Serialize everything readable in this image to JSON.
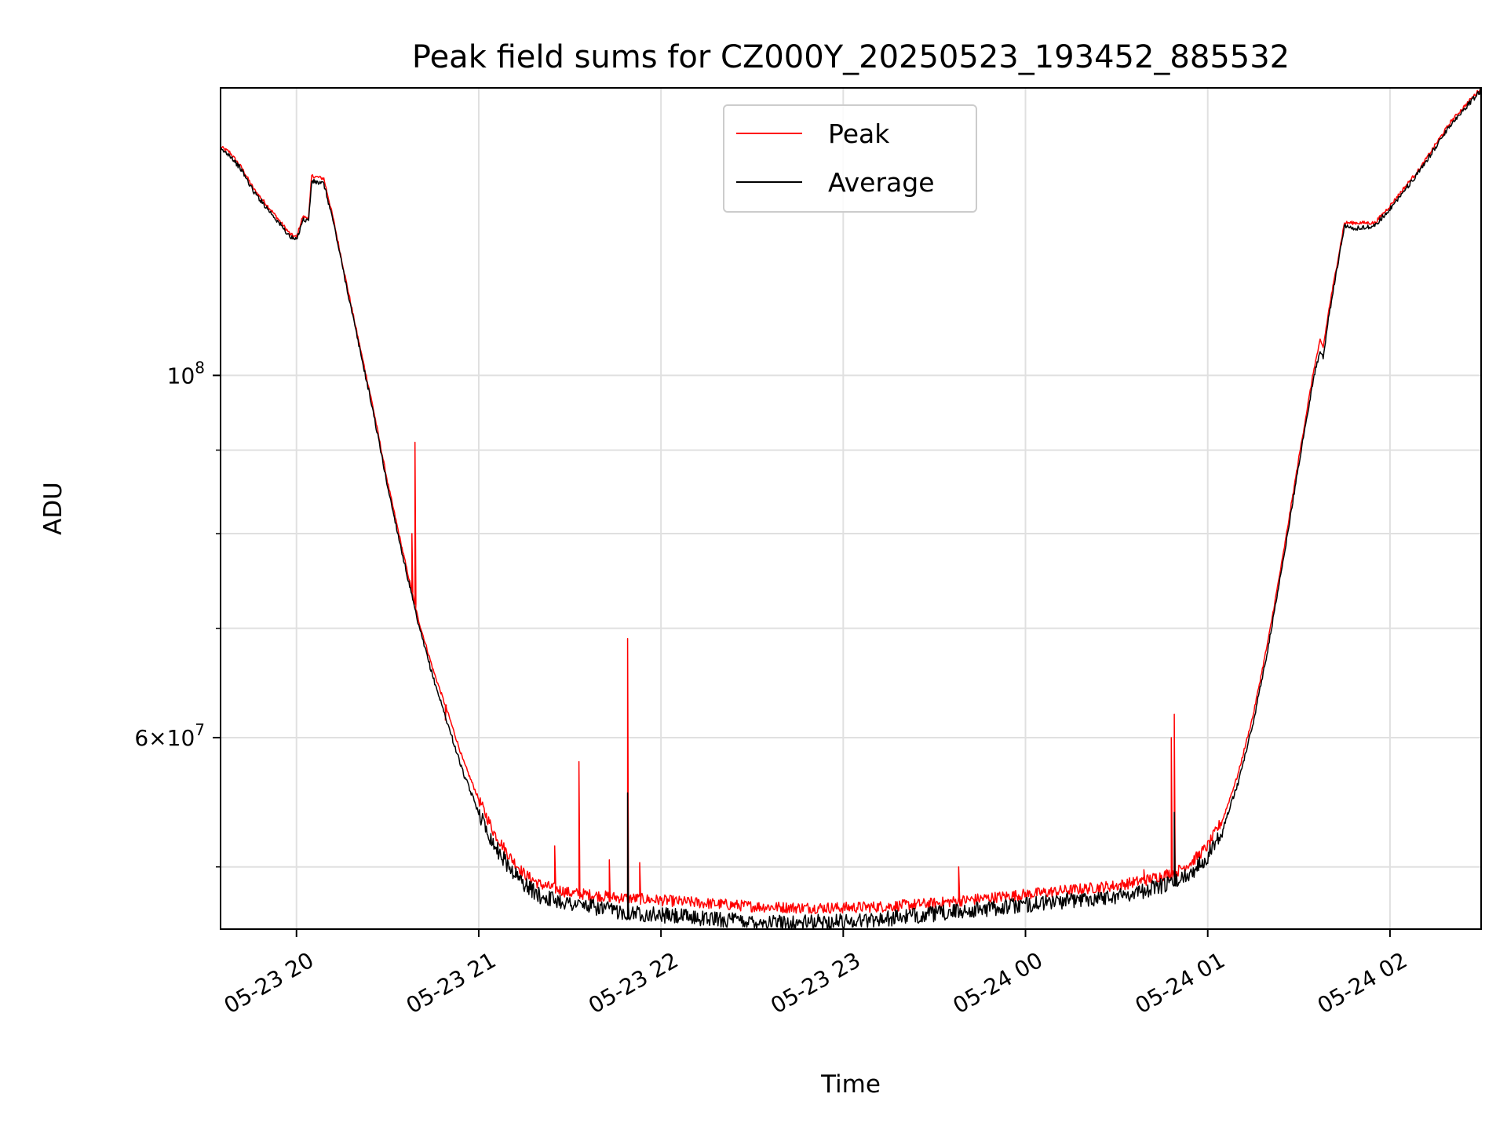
{
  "chart_data": {
    "type": "line",
    "title": "Peak field sums for CZ000Y_20250523_193452_885532",
    "xlabel": "Time",
    "ylabel": "ADU",
    "y_scale": "log",
    "ylim": [
      45800000,
      150000000
    ],
    "xlim": [
      "2025-05-23 19:35",
      "2025-05-24 02:30"
    ],
    "x_ticks": [
      "2025-05-23 20:00",
      "2025-05-23 21:00",
      "2025-05-23 22:00",
      "2025-05-23 23:00",
      "2025-05-24 00:00",
      "2025-05-24 01:00",
      "2025-05-24 02:00"
    ],
    "x_tick_labels": [
      "05-23 20",
      "05-23 21",
      "05-23 22",
      "05-23 23",
      "05-24 00",
      "05-24 01",
      "05-24 02"
    ],
    "y_major_ticks": [
      100000000,
      60000000
    ],
    "y_major_tick_labels": [
      {
        "base": "10",
        "exp": "8",
        "coef": ""
      },
      {
        "base": "10",
        "exp": "7",
        "coef": "6"
      }
    ],
    "y_minor_ticks": [
      50000000,
      70000000,
      80000000,
      90000000
    ],
    "grid": true,
    "legend_position": "top-center",
    "series": [
      {
        "name": "Peak",
        "color": "#ff0000",
        "points": [
          [
            "2025-05-23 19:35",
            138000000
          ],
          [
            "2025-05-23 19:38",
            137000000
          ],
          [
            "2025-05-23 19:42",
            134000000
          ],
          [
            "2025-05-23 19:46",
            130000000
          ],
          [
            "2025-05-23 19:52",
            126000000
          ],
          [
            "2025-05-23 19:58",
            122000000
          ],
          [
            "2025-05-23 20:00",
            121500000
          ],
          [
            "2025-05-23 20:02",
            125000000
          ],
          [
            "2025-05-23 20:04",
            125000000
          ],
          [
            "2025-05-23 20:05",
            132500000
          ],
          [
            "2025-05-23 20:09",
            132000000
          ],
          [
            "2025-05-23 20:12",
            125000000
          ],
          [
            "2025-05-23 20:16",
            115000000
          ],
          [
            "2025-05-23 20:20",
            106000000
          ],
          [
            "2025-05-23 20:25",
            96000000
          ],
          [
            "2025-05-23 20:30",
            86000000
          ],
          [
            "2025-05-23 20:35",
            78000000
          ],
          [
            "2025-05-23 20:40",
            71000000
          ],
          [
            "2025-05-23 20:45",
            66000000
          ],
          [
            "2025-05-23 20:50",
            62000000
          ],
          [
            "2025-05-23 20:55",
            58000000
          ],
          [
            "2025-05-23 21:00",
            55000000
          ],
          [
            "2025-05-23 21:05",
            52500000
          ],
          [
            "2025-05-23 21:10",
            50800000
          ],
          [
            "2025-05-23 21:15",
            49500000
          ],
          [
            "2025-05-23 21:20",
            48800000
          ],
          [
            "2025-05-23 21:30",
            48200000
          ],
          [
            "2025-05-23 21:45",
            47900000
          ],
          [
            "2025-05-23 22:00",
            47700000
          ],
          [
            "2025-05-23 22:15",
            47500000
          ],
          [
            "2025-05-23 22:30",
            47300000
          ],
          [
            "2025-05-23 22:45",
            47200000
          ],
          [
            "2025-05-23 23:00",
            47200000
          ],
          [
            "2025-05-23 23:15",
            47300000
          ],
          [
            "2025-05-23 23:30",
            47500000
          ],
          [
            "2025-05-23 23:45",
            47800000
          ],
          [
            "2025-05-24 00:00",
            48100000
          ],
          [
            "2025-05-24 00:15",
            48400000
          ],
          [
            "2025-05-24 00:30",
            48700000
          ],
          [
            "2025-05-24 00:40",
            49100000
          ],
          [
            "2025-05-24 00:50",
            49700000
          ],
          [
            "2025-05-24 00:55",
            50400000
          ],
          [
            "2025-05-24 01:00",
            51500000
          ],
          [
            "2025-05-24 01:05",
            53500000
          ],
          [
            "2025-05-24 01:10",
            57000000
          ],
          [
            "2025-05-24 01:15",
            62000000
          ],
          [
            "2025-05-24 01:20",
            69000000
          ],
          [
            "2025-05-24 01:25",
            78000000
          ],
          [
            "2025-05-24 01:30",
            89000000
          ],
          [
            "2025-05-24 01:35",
            101000000
          ],
          [
            "2025-05-24 01:37",
            105000000
          ],
          [
            "2025-05-24 01:38",
            104000000
          ],
          [
            "2025-05-24 01:40",
            110000000
          ],
          [
            "2025-05-24 01:45",
            124000000
          ],
          [
            "2025-05-24 01:50",
            124000000
          ],
          [
            "2025-05-24 01:55",
            124000000
          ],
          [
            "2025-05-24 02:00",
            127000000
          ],
          [
            "2025-05-24 02:05",
            130500000
          ],
          [
            "2025-05-24 02:10",
            134000000
          ],
          [
            "2025-05-24 02:15",
            138500000
          ],
          [
            "2025-05-24 02:20",
            143000000
          ],
          [
            "2025-05-24 02:25",
            146500000
          ],
          [
            "2025-05-24 02:30",
            150000000
          ]
        ],
        "spikes": [
          [
            "2025-05-23 20:38",
            80000000
          ],
          [
            "2025-05-23 20:39",
            91000000
          ],
          [
            "2025-05-23 20:49",
            61500000
          ],
          [
            "2025-05-23 21:25",
            51500000
          ],
          [
            "2025-05-23 21:33",
            58000000
          ],
          [
            "2025-05-23 21:43",
            50500000
          ],
          [
            "2025-05-23 21:49",
            69000000
          ],
          [
            "2025-05-23 21:53",
            50300000
          ],
          [
            "2025-05-23 23:38",
            50000000
          ],
          [
            "2025-05-24 00:39",
            49800000
          ],
          [
            "2025-05-24 00:48",
            60000000
          ],
          [
            "2025-05-24 00:49",
            62000000
          ]
        ]
      },
      {
        "name": "Average",
        "color": "#000000",
        "points": [
          [
            "2025-05-23 19:35",
            137500000
          ],
          [
            "2025-05-23 19:38",
            136500000
          ],
          [
            "2025-05-23 19:42",
            133500000
          ],
          [
            "2025-05-23 19:46",
            129500000
          ],
          [
            "2025-05-23 19:52",
            125500000
          ],
          [
            "2025-05-23 19:58",
            121500000
          ],
          [
            "2025-05-23 20:00",
            121000000
          ],
          [
            "2025-05-23 20:02",
            124500000
          ],
          [
            "2025-05-23 20:04",
            124500000
          ],
          [
            "2025-05-23 20:05",
            131500000
          ],
          [
            "2025-05-23 20:09",
            131000000
          ],
          [
            "2025-05-23 20:12",
            124500000
          ],
          [
            "2025-05-23 20:16",
            114500000
          ],
          [
            "2025-05-23 20:20",
            105500000
          ],
          [
            "2025-05-23 20:25",
            95500000
          ],
          [
            "2025-05-23 20:30",
            85500000
          ],
          [
            "2025-05-23 20:35",
            77500000
          ],
          [
            "2025-05-23 20:40",
            70500000
          ],
          [
            "2025-05-23 20:45",
            65300000
          ],
          [
            "2025-05-23 20:50",
            61000000
          ],
          [
            "2025-05-23 20:55",
            57000000
          ],
          [
            "2025-05-23 21:00",
            54000000
          ],
          [
            "2025-05-23 21:05",
            51600000
          ],
          [
            "2025-05-23 21:10",
            50000000
          ],
          [
            "2025-05-23 21:15",
            48800000
          ],
          [
            "2025-05-23 21:20",
            48000000
          ],
          [
            "2025-05-23 21:30",
            47500000
          ],
          [
            "2025-05-23 21:45",
            47000000
          ],
          [
            "2025-05-23 22:00",
            46700000
          ],
          [
            "2025-05-23 22:15",
            46500000
          ],
          [
            "2025-05-23 22:30",
            46300000
          ],
          [
            "2025-05-23 22:45",
            46200000
          ],
          [
            "2025-05-23 23:00",
            46300000
          ],
          [
            "2025-05-23 23:15",
            46500000
          ],
          [
            "2025-05-23 23:30",
            46800000
          ],
          [
            "2025-05-23 23:45",
            47100000
          ],
          [
            "2025-05-24 00:00",
            47400000
          ],
          [
            "2025-05-24 00:15",
            47700000
          ],
          [
            "2025-05-24 00:30",
            48000000
          ],
          [
            "2025-05-24 00:40",
            48400000
          ],
          [
            "2025-05-24 00:50",
            49000000
          ],
          [
            "2025-05-24 00:55",
            49700000
          ],
          [
            "2025-05-24 01:00",
            50800000
          ],
          [
            "2025-05-24 01:05",
            52800000
          ],
          [
            "2025-05-24 01:10",
            56300000
          ],
          [
            "2025-05-24 01:15",
            61300000
          ],
          [
            "2025-05-24 01:20",
            68300000
          ],
          [
            "2025-05-24 01:25",
            77300000
          ],
          [
            "2025-05-24 01:30",
            88300000
          ],
          [
            "2025-05-24 01:35",
            100000000
          ],
          [
            "2025-05-24 01:37",
            103500000
          ],
          [
            "2025-05-24 01:38",
            102500000
          ],
          [
            "2025-05-24 01:40",
            109000000
          ],
          [
            "2025-05-24 01:45",
            123500000
          ],
          [
            "2025-05-24 01:50",
            123000000
          ],
          [
            "2025-05-24 01:55",
            123500000
          ],
          [
            "2025-05-24 02:00",
            126500000
          ],
          [
            "2025-05-24 02:05",
            130000000
          ],
          [
            "2025-05-24 02:10",
            133500000
          ],
          [
            "2025-05-24 02:15",
            138000000
          ],
          [
            "2025-05-24 02:20",
            142500000
          ],
          [
            "2025-05-24 02:25",
            146000000
          ],
          [
            "2025-05-24 02:30",
            149500000
          ]
        ],
        "spikes": [
          [
            "2025-05-23 21:49",
            55500000
          ],
          [
            "2025-05-24 00:49",
            54000000
          ]
        ]
      }
    ]
  }
}
